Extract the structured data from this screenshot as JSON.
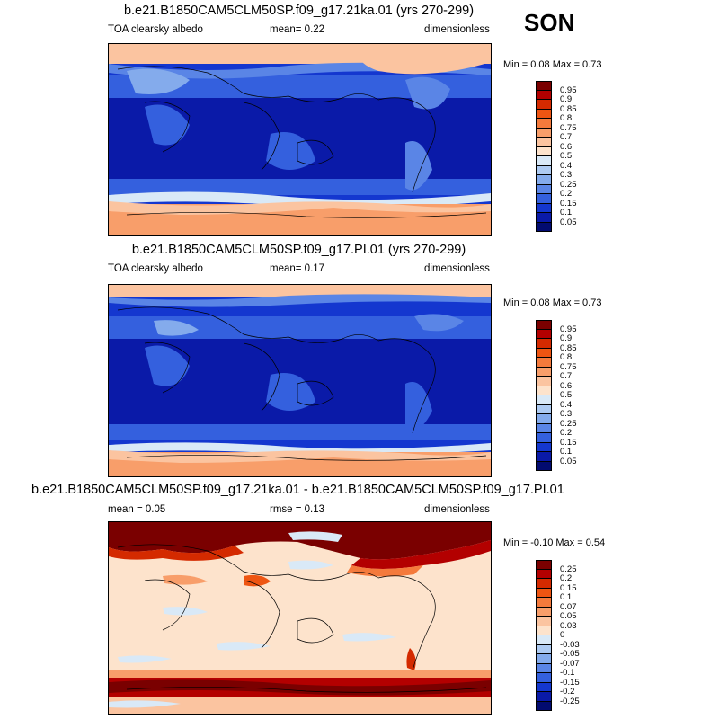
{
  "season": "SON",
  "panels": [
    {
      "title": "b.e21.B1850CAM5CLM50SP.f09_g17.21ka.01 (yrs 270-299)",
      "left_label": "TOA clearsky albedo",
      "center_label": "mean=  0.22",
      "right_label": "dimensionless",
      "minmax": "Min =  0.08 Max =  0.73",
      "colorbar_labels": [
        "0.95",
        "0.9",
        "0.85",
        "0.8",
        "0.75",
        "0.7",
        "0.6",
        "0.5",
        "0.4",
        "0.3",
        "0.25",
        "0.2",
        "0.15",
        "0.1",
        "0.05"
      ],
      "colorbar_colors": [
        "#7a0000",
        "#b30000",
        "#d42a00",
        "#ee5512",
        "#f47a3c",
        "#f89e6a",
        "#fbc4a0",
        "#fde3cc",
        "#d9e9f7",
        "#aecbf2",
        "#84abec",
        "#5a85e6",
        "#3460de",
        "#1437cf",
        "#0a1aa8",
        "#020b70"
      ]
    },
    {
      "title": "b.e21.B1850CAM5CLM50SP.f09_g17.PI.01 (yrs 270-299)",
      "left_label": "TOA clearsky albedo",
      "center_label": "mean=  0.17",
      "right_label": "dimensionless",
      "minmax": "Min =  0.08 Max =  0.73",
      "colorbar_labels": [
        "0.95",
        "0.9",
        "0.85",
        "0.8",
        "0.75",
        "0.7",
        "0.6",
        "0.5",
        "0.4",
        "0.3",
        "0.25",
        "0.2",
        "0.15",
        "0.1",
        "0.05"
      ],
      "colorbar_colors": [
        "#7a0000",
        "#b30000",
        "#d42a00",
        "#ee5512",
        "#f47a3c",
        "#f89e6a",
        "#fbc4a0",
        "#fde3cc",
        "#d9e9f7",
        "#aecbf2",
        "#84abec",
        "#5a85e6",
        "#3460de",
        "#1437cf",
        "#0a1aa8",
        "#020b70"
      ]
    },
    {
      "title": "b.e21.B1850CAM5CLM50SP.f09_g17.21ka.01 - b.e21.B1850CAM5CLM50SP.f09_g17.PI.01",
      "left_label": "mean =  0.05",
      "center_label": "rmse =  0.13",
      "right_label": "dimensionless",
      "minmax": "Min =  -0.10 Max =  0.54",
      "colorbar_labels": [
        "0.25",
        "0.2",
        "0.15",
        "0.1",
        "0.07",
        "0.05",
        "0.03",
        "0",
        "-0.03",
        "-0.05",
        "-0.07",
        "-0.1",
        "-0.15",
        "-0.2",
        "-0.25"
      ],
      "colorbar_colors": [
        "#7a0000",
        "#b30000",
        "#d42a00",
        "#ee5512",
        "#f47a3c",
        "#f89e6a",
        "#fbc4a0",
        "#fde3cc",
        "#d9e9f7",
        "#aecbf2",
        "#84abec",
        "#5a85e6",
        "#3460de",
        "#1437cf",
        "#0a1aa8",
        "#020b70"
      ]
    }
  ],
  "chart_data": [
    {
      "type": "heatmap",
      "title": "b.e21.B1850CAM5CLM50SP.f09_g17.21ka.01 (yrs 270-299)",
      "variable": "TOA clearsky albedo",
      "units": "dimensionless",
      "mean": 0.22,
      "min": 0.08,
      "max": 0.73,
      "levels": [
        0.05,
        0.1,
        0.15,
        0.2,
        0.25,
        0.3,
        0.4,
        0.5,
        0.6,
        0.7,
        0.75,
        0.8,
        0.85,
        0.9,
        0.95
      ]
    },
    {
      "type": "heatmap",
      "title": "b.e21.B1850CAM5CLM50SP.f09_g17.PI.01 (yrs 270-299)",
      "variable": "TOA clearsky albedo",
      "units": "dimensionless",
      "mean": 0.17,
      "min": 0.08,
      "max": 0.73,
      "levels": [
        0.05,
        0.1,
        0.15,
        0.2,
        0.25,
        0.3,
        0.4,
        0.5,
        0.6,
        0.7,
        0.75,
        0.8,
        0.85,
        0.9,
        0.95
      ]
    },
    {
      "type": "heatmap",
      "title": "b.e21.B1850CAM5CLM50SP.f09_g17.21ka.01 - b.e21.B1850CAM5CLM50SP.f09_g17.PI.01",
      "units": "dimensionless",
      "mean": 0.05,
      "rmse": 0.13,
      "min": -0.1,
      "max": 0.54,
      "levels": [
        -0.25,
        -0.2,
        -0.15,
        -0.1,
        -0.07,
        -0.05,
        -0.03,
        0,
        0.03,
        0.05,
        0.07,
        0.1,
        0.15,
        0.2,
        0.25
      ]
    }
  ]
}
